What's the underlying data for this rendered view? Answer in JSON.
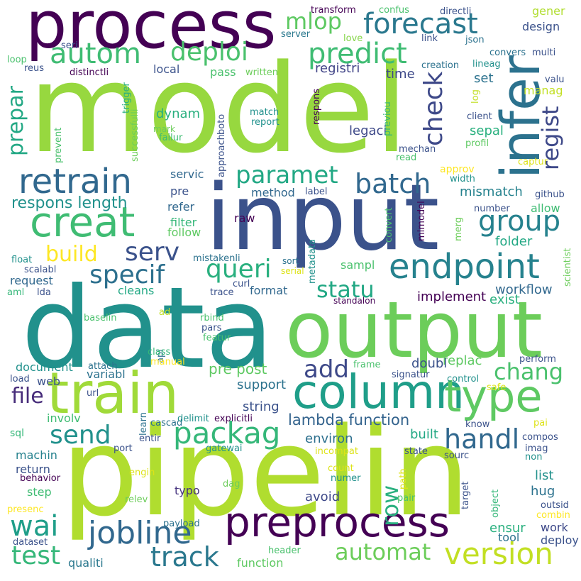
{
  "words": [
    {
      "text": "model",
      "color": "#97d83f"
    },
    {
      "text": "pipelin",
      "color": "#b0dd2f"
    },
    {
      "text": "data",
      "color": "#21918c"
    },
    {
      "text": "input",
      "color": "#3b528b"
    },
    {
      "text": "output",
      "color": "#6ccd5a"
    },
    {
      "text": "process",
      "color": "#440154"
    },
    {
      "text": "train",
      "color": "#a0da39"
    },
    {
      "text": "infer",
      "color": "#2c728e"
    },
    {
      "text": "column",
      "color": "#1f9e89"
    },
    {
      "text": "preprocess",
      "color": "#440154"
    },
    {
      "text": "creat",
      "color": "#3fbc73"
    },
    {
      "text": "retrain",
      "color": "#31688e"
    },
    {
      "text": "type",
      "color": "#5ec962"
    },
    {
      "text": "endpoint",
      "color": "#26828e"
    },
    {
      "text": "forecast",
      "color": "#2a788e"
    },
    {
      "text": "autom",
      "color": "#3fbc73"
    },
    {
      "text": "deploi",
      "color": "#4ac16d"
    },
    {
      "text": "predict",
      "color": "#3fbc73"
    },
    {
      "text": "packag",
      "color": "#35b779"
    },
    {
      "text": "paramet",
      "color": "#22a884"
    },
    {
      "text": "batch",
      "color": "#31688e"
    },
    {
      "text": "group",
      "color": "#26828e"
    },
    {
      "text": "queri",
      "color": "#2ab07f"
    },
    {
      "text": "serv",
      "color": "#3b528b"
    },
    {
      "text": "specif",
      "color": "#2d708e"
    },
    {
      "text": "statu",
      "color": "#22a884"
    },
    {
      "text": "jobline",
      "color": "#31688e"
    },
    {
      "text": "version",
      "color": "#c2df23"
    },
    {
      "text": "automat",
      "color": "#6ccd5a"
    },
    {
      "text": "track",
      "color": "#2a788e"
    },
    {
      "text": "test",
      "color": "#35b779"
    },
    {
      "text": "send",
      "color": "#21918c"
    },
    {
      "text": "wai",
      "color": "#1f9e89"
    },
    {
      "text": "file",
      "color": "#472c7a"
    },
    {
      "text": "handl",
      "color": "#31688e"
    },
    {
      "text": "chang",
      "color": "#4ac16d"
    },
    {
      "text": "add",
      "color": "#3e4989"
    },
    {
      "text": "mlop",
      "color": "#5ec962"
    },
    {
      "text": "build",
      "color": "#fde725"
    },
    {
      "text": "prepar",
      "color": "#22a884"
    },
    {
      "text": "check",
      "color": "#3e4989"
    },
    {
      "text": "regist",
      "color": "#3e4989"
    },
    {
      "text": "row",
      "color": "#2ab07f"
    },
    {
      "text": "lambda function",
      "color": "#33638d"
    },
    {
      "text": "respons length",
      "color": "#21918c"
    },
    {
      "text": "registri",
      "color": "#414487"
    },
    {
      "text": "legaci",
      "color": "#3e4989"
    },
    {
      "text": "sepal",
      "color": "#2ab07f"
    },
    {
      "text": "mismatch",
      "color": "#26828e"
    },
    {
      "text": "allow",
      "color": "#3fbc73"
    },
    {
      "text": "folder",
      "color": "#22a884"
    },
    {
      "text": "workflow",
      "color": "#31688e"
    },
    {
      "text": "implement",
      "color": "#440154"
    },
    {
      "text": "exist",
      "color": "#2ab07f"
    },
    {
      "text": "replac",
      "color": "#5ec962"
    },
    {
      "text": "doubl",
      "color": "#3b528b"
    },
    {
      "text": "environ",
      "color": "#2d708e"
    },
    {
      "text": "string",
      "color": "#3b528b"
    },
    {
      "text": "support",
      "color": "#2c728e"
    },
    {
      "text": "built",
      "color": "#22a884"
    },
    {
      "text": "avoid",
      "color": "#3e4989"
    },
    {
      "text": "ensur",
      "color": "#2ab07f"
    },
    {
      "text": "hug",
      "color": "#2c728e"
    },
    {
      "text": "list",
      "color": "#21918c"
    },
    {
      "text": "work",
      "color": "#3e4989"
    },
    {
      "text": "deploy",
      "color": "#3b528b"
    },
    {
      "text": "tool",
      "color": "#2c728e"
    },
    {
      "text": "pre post",
      "color": "#5ec962"
    },
    {
      "text": "document",
      "color": "#21918c"
    },
    {
      "text": "variabl",
      "color": "#2c728e"
    },
    {
      "text": "web",
      "color": "#3b528b"
    },
    {
      "text": "involv",
      "color": "#3fbc73"
    },
    {
      "text": "machin",
      "color": "#26828e"
    },
    {
      "text": "return",
      "color": "#3b528b"
    },
    {
      "text": "step",
      "color": "#3fbc73"
    },
    {
      "text": "typo",
      "color": "#46337f"
    },
    {
      "text": "qualiti",
      "color": "#2a788e"
    },
    {
      "text": "function",
      "color": "#5ec962"
    },
    {
      "text": "sql",
      "color": "#35b779"
    },
    {
      "text": "request",
      "color": "#31688e"
    },
    {
      "text": "format",
      "color": "#31688e"
    },
    {
      "text": "cleans",
      "color": "#22a884"
    },
    {
      "text": "follow",
      "color": "#5ec962"
    },
    {
      "text": "filter",
      "color": "#35b779"
    },
    {
      "text": "refer",
      "color": "#31688e"
    },
    {
      "text": "pre",
      "color": "#3b528b"
    },
    {
      "text": "servic",
      "color": "#31688e"
    },
    {
      "text": "method",
      "color": "#31688e"
    },
    {
      "text": "raw",
      "color": "#440154"
    },
    {
      "text": "sampl",
      "color": "#4ac16d"
    },
    {
      "text": "dynam",
      "color": "#2ab07f"
    },
    {
      "text": "time",
      "color": "#3e4989"
    },
    {
      "text": "set",
      "color": "#2c728e"
    },
    {
      "text": "manag",
      "color": "#c2df23"
    },
    {
      "text": "local",
      "color": "#3b528b"
    },
    {
      "text": "pass",
      "color": "#4ac16d"
    },
    {
      "text": "design",
      "color": "#3b528b"
    },
    {
      "text": "gener",
      "color": "#b0dd2f"
    },
    {
      "text": "transform",
      "color": "#440154"
    },
    {
      "text": "confus",
      "color": "#4ac16d"
    },
    {
      "text": "directli",
      "color": "#3b528b"
    },
    {
      "text": "link",
      "color": "#3b528b"
    },
    {
      "text": "json",
      "color": "#2c728e"
    },
    {
      "text": "server",
      "color": "#2a788e"
    },
    {
      "text": "love",
      "color": "#86d549"
    },
    {
      "text": "multi",
      "color": "#3b528b"
    },
    {
      "text": "convers",
      "color": "#2c728e"
    },
    {
      "text": "creation",
      "color": "#2c728e"
    },
    {
      "text": "lineag",
      "color": "#21918c"
    },
    {
      "text": "valu",
      "color": "#3b528b"
    },
    {
      "text": "distinctli",
      "color": "#440154"
    },
    {
      "text": "written",
      "color": "#6ccd5a"
    },
    {
      "text": "reus",
      "color": "#3b528b"
    },
    {
      "text": "loop",
      "color": "#4ac16d"
    },
    {
      "text": "seri",
      "color": "#3b528b"
    },
    {
      "text": "respons",
      "color": "#440154"
    },
    {
      "text": "match",
      "color": "#21918c"
    },
    {
      "text": "report",
      "color": "#21918c"
    },
    {
      "text": "boto",
      "color": "#3b528b"
    },
    {
      "text": "approach",
      "color": "#3b528b"
    },
    {
      "text": "failur",
      "color": "#3fbc73"
    },
    {
      "text": "mark",
      "color": "#6ccd5a"
    },
    {
      "text": "trigger",
      "color": "#2ab07f"
    },
    {
      "text": "successfulli",
      "color": "#6ccd5a"
    },
    {
      "text": "prevent",
      "color": "#4ac16d"
    },
    {
      "text": "previou",
      "color": "#35b779"
    },
    {
      "text": "read",
      "color": "#4ac16d"
    },
    {
      "text": "mechan",
      "color": "#3b528b"
    },
    {
      "text": "client",
      "color": "#3b528b"
    },
    {
      "text": "profil",
      "color": "#5ec962"
    },
    {
      "text": "captur",
      "color": "#dde318"
    },
    {
      "text": "log",
      "color": "#c2df23"
    },
    {
      "text": "approv",
      "color": "#fde725"
    },
    {
      "text": "width",
      "color": "#21918c"
    },
    {
      "text": "github",
      "color": "#3b528b"
    },
    {
      "text": "number",
      "color": "#3b528b"
    },
    {
      "text": "label",
      "color": "#3b528b"
    },
    {
      "text": "convert",
      "color": "#4ac16d"
    },
    {
      "text": "merg",
      "color": "#6ccd5a"
    },
    {
      "text": "mlmodel",
      "color": "#440154"
    },
    {
      "text": "scientist",
      "color": "#6ccd5a"
    },
    {
      "text": "metadata",
      "color": "#21918c"
    },
    {
      "text": "sort",
      "color": "#2c728e"
    },
    {
      "text": "serial",
      "color": "#dde318"
    },
    {
      "text": "float",
      "color": "#21918c"
    },
    {
      "text": "mistakenli",
      "color": "#2c728e"
    },
    {
      "text": "scalabl",
      "color": "#3b528b"
    },
    {
      "text": "curl",
      "color": "#3b528b"
    },
    {
      "text": "aml",
      "color": "#35b779"
    },
    {
      "text": "lda",
      "color": "#3b528b"
    },
    {
      "text": "trace",
      "color": "#3b528b"
    },
    {
      "text": "standalon",
      "color": "#440154"
    },
    {
      "text": "baselin",
      "color": "#4ac16d"
    },
    {
      "text": "ad",
      "color": "#c2df23"
    },
    {
      "text": "rbind",
      "color": "#4ac16d"
    },
    {
      "text": "pars",
      "color": "#3b528b"
    },
    {
      "text": "featur",
      "color": "#4ac16d"
    },
    {
      "text": "api",
      "color": "#2c728e"
    },
    {
      "text": "class",
      "color": "#35b779"
    },
    {
      "text": "manual",
      "color": "#fde725"
    },
    {
      "text": "attach",
      "color": "#2c728e"
    },
    {
      "text": "load",
      "color": "#3b528b"
    },
    {
      "text": "frame",
      "color": "#4ac16d"
    },
    {
      "text": "signatur",
      "color": "#3b528b"
    },
    {
      "text": "control",
      "color": "#21918c"
    },
    {
      "text": "safe",
      "color": "#dde318"
    },
    {
      "text": "perform",
      "color": "#3b528b"
    },
    {
      "text": "url",
      "color": "#3b528b"
    },
    {
      "text": "learn",
      "color": "#2c728e"
    },
    {
      "text": "cascad",
      "color": "#2c728e"
    },
    {
      "text": "delimit",
      "color": "#21918c"
    },
    {
      "text": "explicitli",
      "color": "#440154"
    },
    {
      "text": "entir",
      "color": "#3b528b"
    },
    {
      "text": "port",
      "color": "#3b528b"
    },
    {
      "text": "gatewai",
      "color": "#21918c"
    },
    {
      "text": "incompat",
      "color": "#dde318"
    },
    {
      "text": "know",
      "color": "#3b528b"
    },
    {
      "text": "compos",
      "color": "#3b528b"
    },
    {
      "text": "imag",
      "color": "#3b528b"
    },
    {
      "text": "non",
      "color": "#21918c"
    },
    {
      "text": "pai",
      "color": "#dde318"
    },
    {
      "text": "sourc",
      "color": "#3b528b"
    },
    {
      "text": "state",
      "color": "#3b528b"
    },
    {
      "text": "behavior",
      "color": "#440154"
    },
    {
      "text": "engin",
      "color": "#dde318"
    },
    {
      "text": "count",
      "color": "#dde318"
    },
    {
      "text": "numer",
      "color": "#21918c"
    },
    {
      "text": "dag",
      "color": "#6ccd5a"
    },
    {
      "text": "path",
      "color": "#dde318"
    },
    {
      "text": "pair",
      "color": "#4ac16d"
    },
    {
      "text": "target",
      "color": "#3b528b"
    },
    {
      "text": "object",
      "color": "#35b779"
    },
    {
      "text": "outsid",
      "color": "#3b528b"
    },
    {
      "text": "combin",
      "color": "#fde725"
    },
    {
      "text": "presenc",
      "color": "#fde725"
    },
    {
      "text": "relev",
      "color": "#6ccd5a"
    },
    {
      "text": "payload",
      "color": "#2c728e"
    },
    {
      "text": "dataset",
      "color": "#3b528b"
    },
    {
      "text": "header",
      "color": "#4ac16d"
    }
  ]
}
